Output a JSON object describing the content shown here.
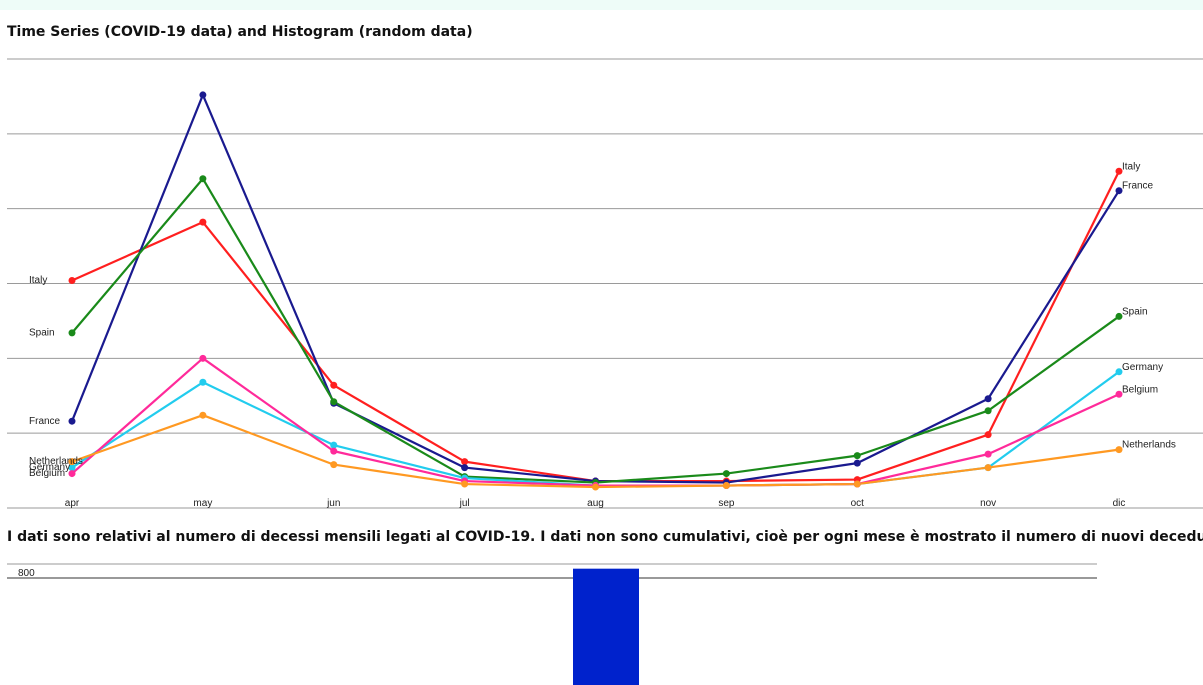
{
  "headings": {
    "chart_title": "Time Series (COVID-19 data) and Histogram (random data)",
    "note": "I dati sono relativi al numero di decessi mensili legati al COVID-19. I dati non sono cumulativi, cioè per ogni mese è mostrato il numero di nuovi deceduti."
  },
  "colors": {
    "Italy": "#ff1f1f",
    "France": "#1a1a8f",
    "Spain": "#1a8a1a",
    "Germany": "#22ccee",
    "Belgium": "#ff2a9a",
    "Netherlands": "#ff9922",
    "bar": "#0022cc",
    "grid": "#9a9a9a"
  },
  "chart_data": [
    {
      "type": "line",
      "x": [
        "apr",
        "may",
        "jun",
        "jul",
        "aug",
        "sep",
        "oct",
        "nov",
        "dic"
      ],
      "ylim": [
        0,
        30000
      ],
      "grid": true,
      "legend": "series labels at line ends",
      "series": [
        {
          "name": "Italy",
          "values": [
            15200,
            19100,
            8200,
            3100,
            1800,
            1800,
            1900,
            4900,
            22500
          ]
        },
        {
          "name": "France",
          "values": [
            5800,
            27600,
            7000,
            2700,
            1800,
            1700,
            3000,
            7300,
            21200
          ]
        },
        {
          "name": "Spain",
          "values": [
            11700,
            22000,
            7100,
            2100,
            1700,
            2300,
            3500,
            6500,
            12800
          ]
        },
        {
          "name": "Germany",
          "values": [
            2700,
            8400,
            4200,
            2000,
            1500,
            1500,
            1600,
            2700,
            9100
          ]
        },
        {
          "name": "Belgium",
          "values": [
            2300,
            10000,
            3800,
            1800,
            1500,
            1500,
            1600,
            3600,
            7600
          ]
        },
        {
          "name": "Netherlands",
          "values": [
            3100,
            6200,
            2900,
            1600,
            1400,
            1500,
            1600,
            2700,
            3900
          ]
        }
      ]
    },
    {
      "type": "bar",
      "values": [
        870
      ],
      "y_ticks": [
        "800"
      ],
      "ylim": [
        0,
        890
      ],
      "grid": true
    }
  ]
}
